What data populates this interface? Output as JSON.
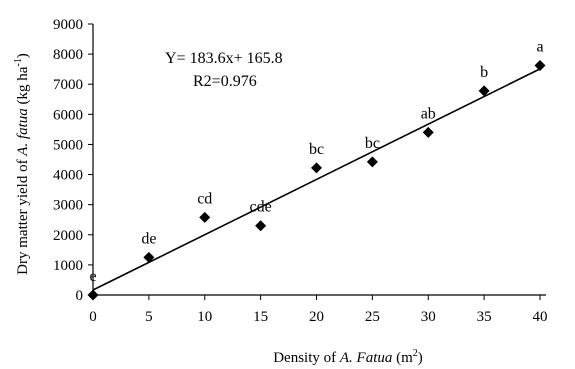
{
  "chart_data": {
    "type": "scatter",
    "xlabel_parts": [
      "Density of ",
      "A. Fatua",
      " (m",
      "2",
      ")"
    ],
    "ylabel_parts": [
      "Dry matter yield of ",
      "A. fatua",
      " (kg ha",
      "-1",
      ")"
    ],
    "xlim": [
      0,
      40
    ],
    "ylim": [
      0,
      9000
    ],
    "xticks": [
      0,
      5,
      10,
      15,
      20,
      25,
      30,
      35,
      40
    ],
    "yticks": [
      0,
      1000,
      2000,
      3000,
      4000,
      5000,
      6000,
      7000,
      8000,
      9000
    ],
    "points": [
      {
        "x": 0,
        "y": 0,
        "label": "e"
      },
      {
        "x": 5,
        "y": 1250,
        "label": "de"
      },
      {
        "x": 10,
        "y": 2580,
        "label": "cd"
      },
      {
        "x": 15,
        "y": 2300,
        "label": "cde"
      },
      {
        "x": 20,
        "y": 4220,
        "label": "bc"
      },
      {
        "x": 25,
        "y": 4420,
        "label": "bc"
      },
      {
        "x": 30,
        "y": 5400,
        "label": "ab"
      },
      {
        "x": 35,
        "y": 6780,
        "label": "b"
      },
      {
        "x": 40,
        "y": 7620,
        "label": "a"
      }
    ],
    "regression": {
      "slope": 183.6,
      "intercept": 165.8,
      "x_range": [
        0,
        40
      ]
    },
    "equation": "Y= 183.6x+ 165.8",
    "r2": "R2=0.976",
    "grid": false
  }
}
